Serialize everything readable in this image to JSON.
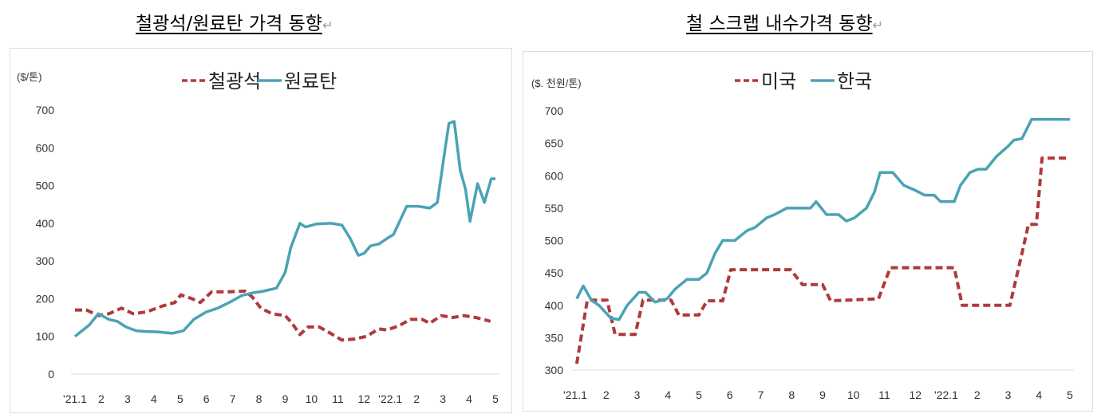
{
  "chart_data": [
    {
      "type": "line",
      "title": "철광석/원료탄 가격 동향",
      "title_mark": "↵",
      "unit": "($/톤)",
      "categories": [
        "'21.1",
        "2",
        "3",
        "4",
        "5",
        "6",
        "7",
        "8",
        "9",
        "10",
        "11",
        "12",
        "'22.1",
        "2",
        "3",
        "4",
        "5"
      ],
      "ylim": [
        0,
        700
      ],
      "yticks": [
        0,
        100,
        200,
        300,
        400,
        500,
        600,
        700
      ],
      "grid": false,
      "legend": "top",
      "series": [
        {
          "name": "철광석",
          "style": "dashed",
          "color": "#b03a3a",
          "x": [
            0,
            0.43,
            0.89,
            1.29,
            1.77,
            2.21,
            2.72,
            3.3,
            3.8,
            4.03,
            4.45,
            4.77,
            5.2,
            5.77,
            6.47,
            6.74,
            7.07,
            7.5,
            8,
            8.26,
            8.56,
            8.87,
            9.29,
            9.68,
            10.16,
            10.63,
            11.09,
            11.56,
            11.88,
            12.32,
            12.76,
            13.21,
            13.5,
            13.94,
            14.37,
            14.8,
            15.26,
            15.81
          ],
          "y": [
            170,
            170,
            155,
            160,
            175,
            160,
            165,
            180,
            190,
            210,
            200,
            190,
            218,
            218,
            220,
            205,
            175,
            160,
            155,
            135,
            105,
            125,
            125,
            110,
            90,
            93,
            100,
            120,
            117,
            128,
            145,
            145,
            135,
            155,
            150,
            155,
            150,
            140
          ]
        },
        {
          "name": "원료탄",
          "style": "solid",
          "color": "#4aa3b5",
          "x": [
            0,
            0.54,
            0.89,
            1.29,
            1.61,
            1.94,
            2.33,
            2.72,
            3.13,
            3.7,
            4.13,
            4.52,
            5,
            5.43,
            5.93,
            6.34,
            6.74,
            7.17,
            7.67,
            8,
            8.21,
            8.56,
            8.77,
            9.19,
            9.74,
            10.16,
            10.47,
            10.78,
            11,
            11.25,
            11.56,
            11.88,
            12.12,
            12.62,
            13.06,
            13.5,
            13.79,
            14.09,
            14.23,
            14.43,
            14.66,
            14.86,
            15.03,
            15.32,
            15.58,
            15.84,
            16
          ],
          "y": [
            100,
            130,
            160,
            145,
            140,
            125,
            115,
            113,
            112,
            108,
            115,
            145,
            165,
            175,
            192,
            208,
            215,
            220,
            228,
            270,
            335,
            400,
            390,
            398,
            400,
            395,
            360,
            315,
            320,
            340,
            345,
            360,
            370,
            445,
            445,
            440,
            455,
            600,
            665,
            670,
            540,
            490,
            405,
            505,
            455,
            518,
            518
          ]
        }
      ]
    },
    {
      "type": "line",
      "title": "철 스크랩 내수가격 동향",
      "title_mark": "↵",
      "unit": "($. 천원/톤)",
      "categories": [
        "'21.1",
        "2",
        "3",
        "4",
        "5",
        "6",
        "7",
        "8",
        "9",
        "10",
        "11",
        "12",
        "'22.1",
        "2",
        "3",
        "4",
        "5"
      ],
      "ylim": [
        300,
        700
      ],
      "yticks": [
        300,
        350,
        400,
        450,
        500,
        550,
        600,
        650,
        700
      ],
      "grid": false,
      "legend": "top",
      "series": [
        {
          "name": "미국",
          "style": "dashed",
          "color": "#b03a3a",
          "x": [
            0.05,
            0.39,
            1.03,
            1.29,
            1.94,
            2.19,
            3.1,
            3.35,
            4,
            4.26,
            4.77,
            5.03,
            6.97,
            7.35,
            8,
            8.26,
            9.81,
            10.19,
            12.26,
            12.52,
            14.06,
            14.45,
            14.66,
            14.92,
            15.1,
            16
          ],
          "y": [
            310,
            408,
            408,
            355,
            355,
            408,
            408,
            385,
            385,
            407,
            407,
            455,
            455,
            432,
            432,
            407,
            410,
            458,
            458,
            400,
            400,
            480,
            525,
            525,
            627,
            627
          ]
        },
        {
          "name": "한국",
          "style": "solid",
          "color": "#4aa3b5",
          "x": [
            0.05,
            0.26,
            0.52,
            0.77,
            1.16,
            1.42,
            1.68,
            2.06,
            2.27,
            2.58,
            2.97,
            3.23,
            3.61,
            4,
            4.26,
            4.52,
            4.77,
            5.16,
            5.55,
            5.81,
            6.19,
            6.45,
            6.84,
            7.23,
            7.61,
            7.79,
            8.13,
            8.52,
            8.77,
            9.03,
            9.42,
            9.68,
            9.86,
            10.27,
            10.63,
            10.97,
            11.3,
            11.61,
            11.82,
            12.26,
            12.46,
            12.77,
            13.03,
            13.29,
            13.63,
            13.99,
            14.19,
            14.45,
            14.76,
            16
          ],
          "y": [
            410,
            430,
            408,
            400,
            380,
            378,
            400,
            420,
            420,
            405,
            410,
            425,
            440,
            440,
            450,
            480,
            500,
            500,
            515,
            520,
            535,
            540,
            550,
            550,
            550,
            560,
            540,
            540,
            530,
            535,
            550,
            575,
            605,
            605,
            585,
            578,
            570,
            570,
            560,
            560,
            585,
            605,
            610,
            610,
            630,
            645,
            655,
            657,
            687,
            687
          ]
        }
      ]
    }
  ]
}
